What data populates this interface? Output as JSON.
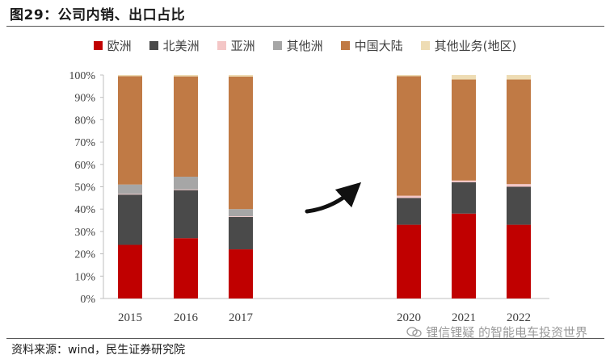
{
  "header": {
    "title": "图29：公司内销、出口占比"
  },
  "footer": {
    "source": "资料来源：wind，民生证券研究院"
  },
  "watermark": {
    "text": "锂信锂疑 的智能电车投资世界",
    "icon": "wechat-icon"
  },
  "colors": {
    "europe": "#c00000",
    "north_america": "#4a4a4a",
    "asia": "#f4c6c6",
    "other_continents": "#a6a6a6",
    "china_mainland": "#c07a45",
    "other_business": "#eedcb4"
  },
  "chart_data": {
    "type": "bar",
    "stacked": true,
    "categories": [
      "2015",
      "2016",
      "2017",
      "2020",
      "2021",
      "2022"
    ],
    "series": [
      {
        "name": "欧洲",
        "key": "europe",
        "values": [
          24.0,
          27.0,
          22.0,
          33.0,
          38.0,
          33.0
        ]
      },
      {
        "name": "北美洲",
        "key": "north_america",
        "values": [
          22.5,
          21.5,
          14.5,
          12.0,
          14.0,
          17.0
        ]
      },
      {
        "name": "亚洲",
        "key": "asia",
        "values": [
          0.3,
          0.3,
          0.3,
          1.0,
          0.8,
          1.2
        ]
      },
      {
        "name": "其他洲",
        "key": "other_continents",
        "values": [
          4.2,
          5.7,
          3.2,
          0.0,
          0.0,
          0.0
        ]
      },
      {
        "name": "中国大陆",
        "key": "china_mainland",
        "values": [
          48.5,
          44.9,
          59.3,
          53.5,
          45.2,
          46.8
        ]
      },
      {
        "name": "其他业务(地区)",
        "key": "other_business",
        "values": [
          0.5,
          0.6,
          0.7,
          0.5,
          2.0,
          2.0
        ]
      }
    ],
    "y_ticks": [
      "0%",
      "10%",
      "20%",
      "30%",
      "40%",
      "50%",
      "60%",
      "70%",
      "80%",
      "90%",
      "100%"
    ],
    "ylim": [
      0,
      100
    ],
    "legend_position": "top",
    "grid": false
  }
}
